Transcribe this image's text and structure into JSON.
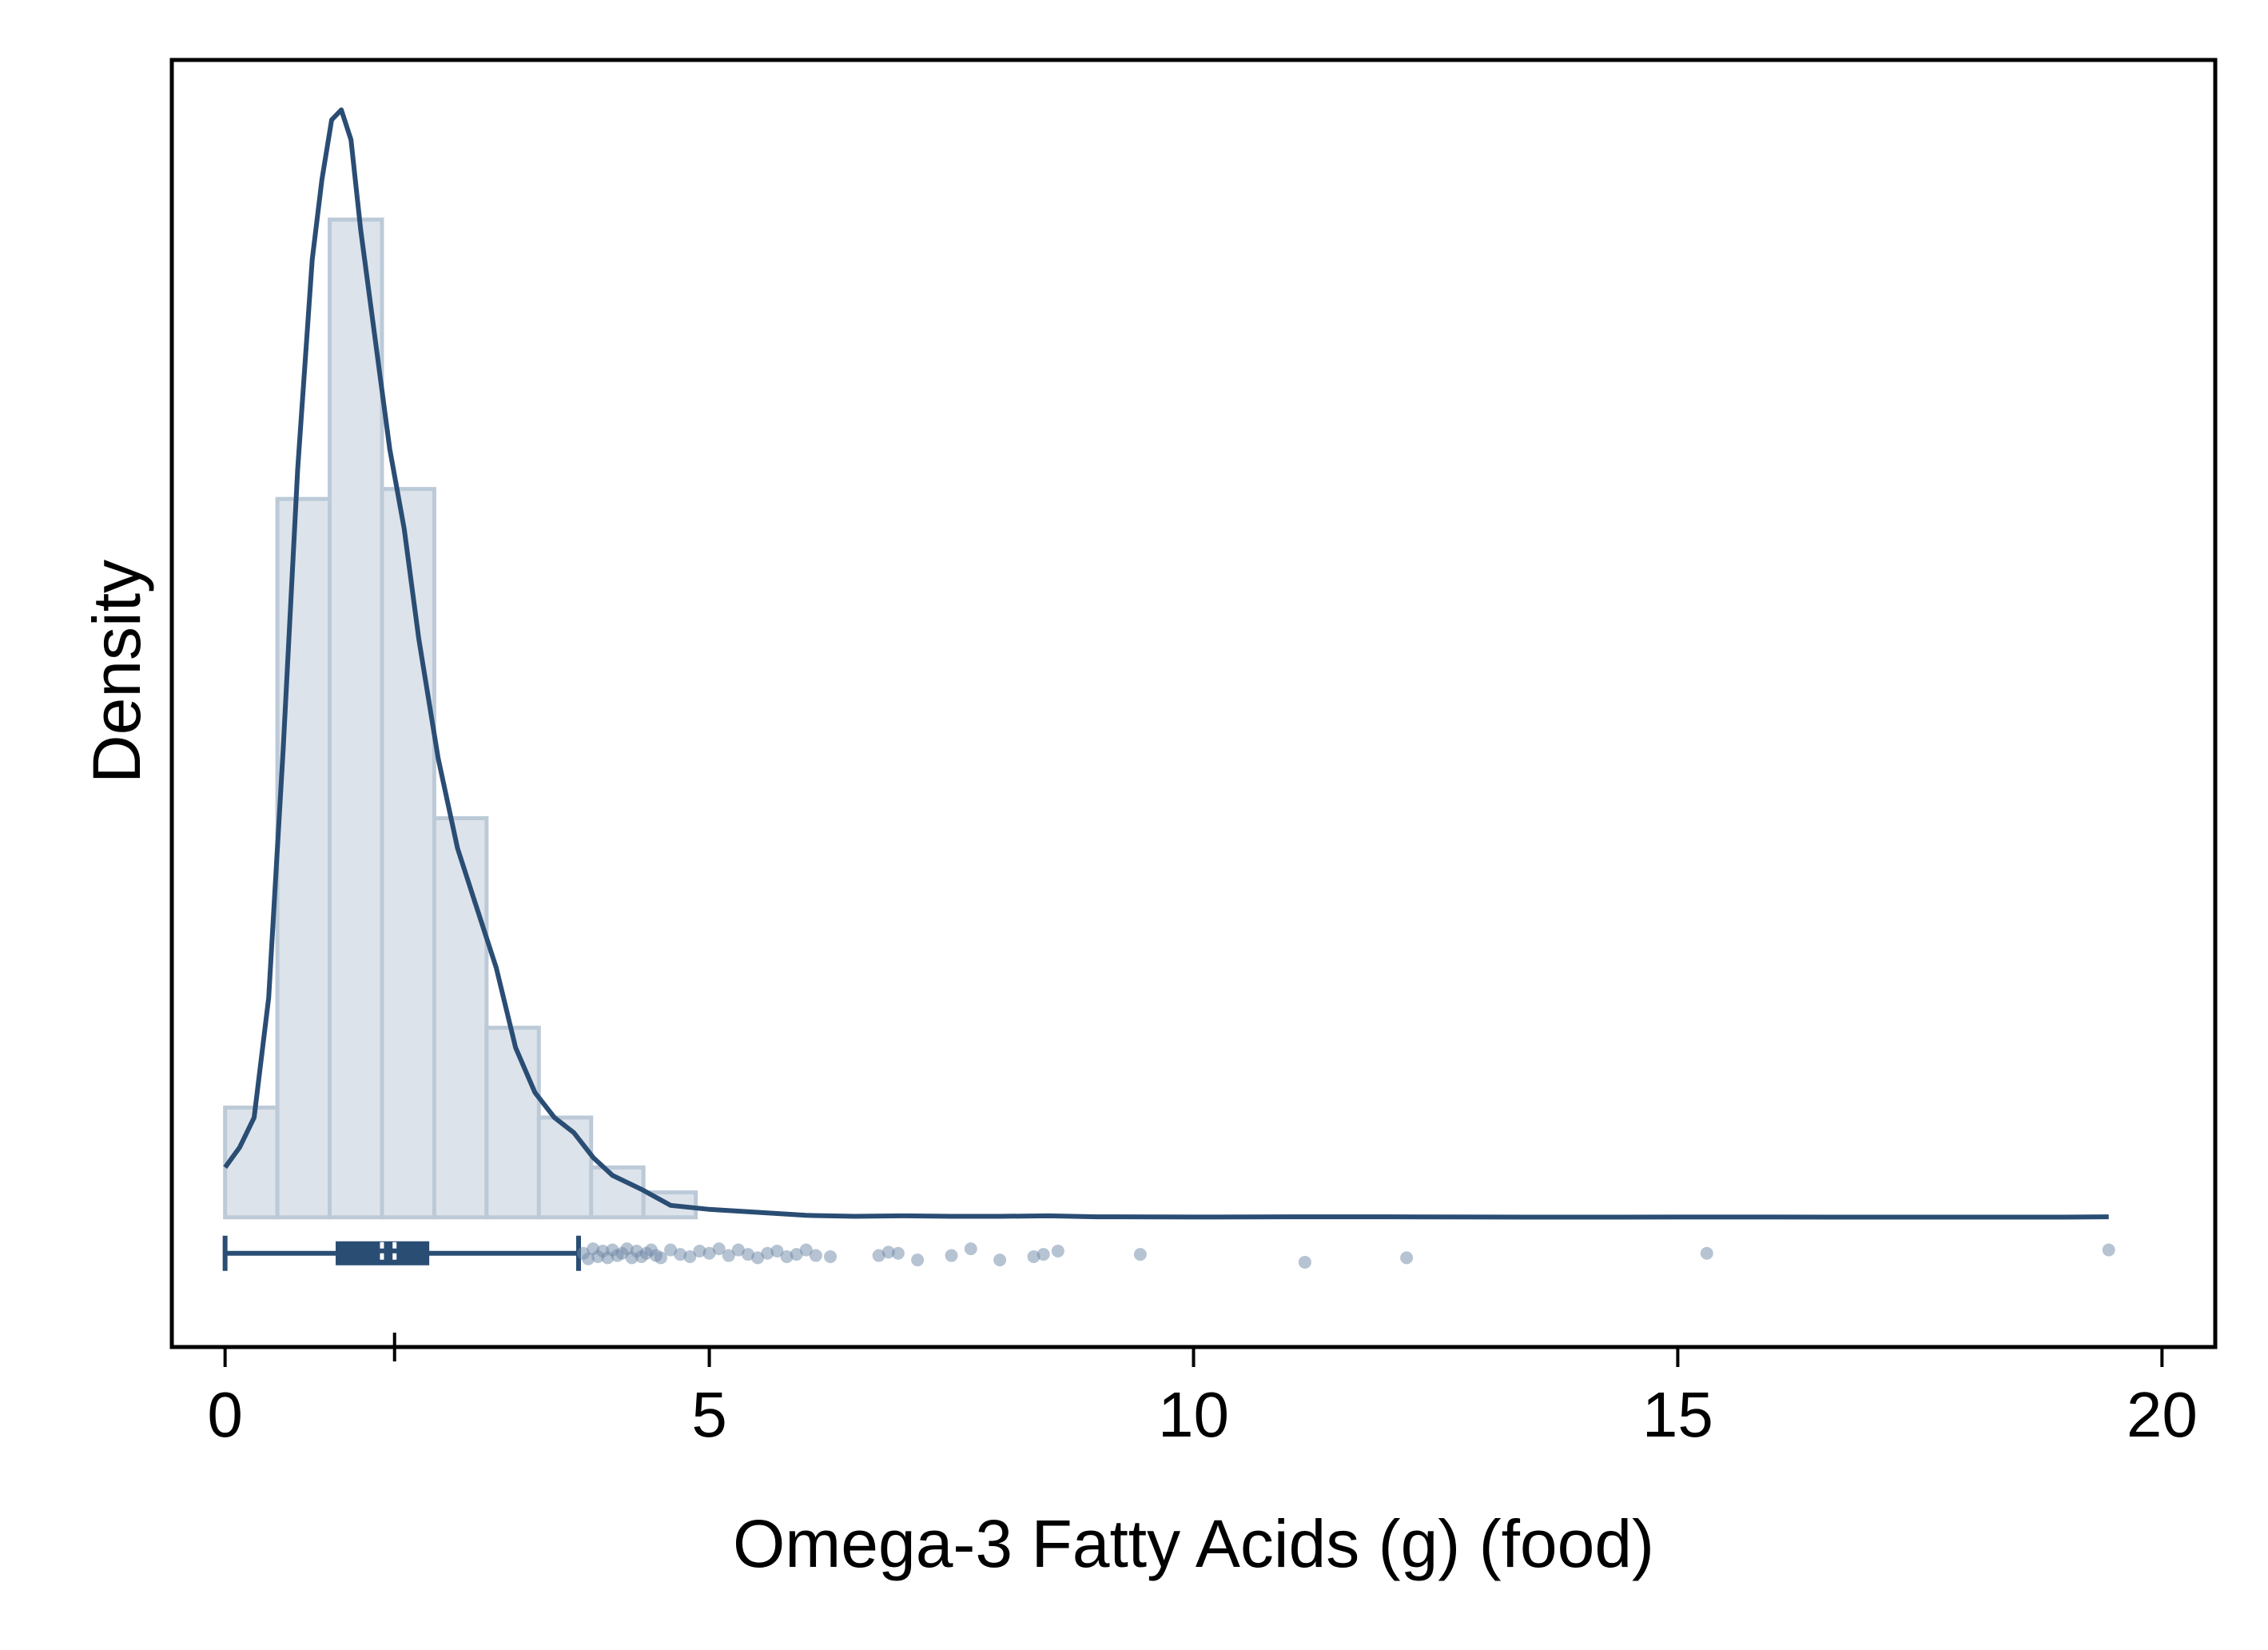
{
  "chart_data": {
    "type": "histogram",
    "xlabel": "Omega-3 Fatty Acids (g) (food)",
    "ylabel": "Density",
    "xlim": [
      -0.55,
      20.55
    ],
    "ylim": [
      -0.13,
      1.16
    ],
    "x_ticks": [
      0,
      5,
      10,
      15,
      20
    ],
    "x_tick_labels": [
      "0",
      "5",
      "10",
      "15",
      "20"
    ],
    "y_ticks_shown": false,
    "grid": false,
    "legend": "none",
    "histogram": {
      "bin_edges": [
        0,
        0.54,
        1.08,
        1.62,
        2.16,
        2.7,
        3.24,
        3.78,
        4.32,
        4.86
      ],
      "heights": [
        0.11,
        0.72,
        1.0,
        0.73,
        0.4,
        0.19,
        0.1,
        0.05,
        0.025
      ]
    },
    "density_curve": {
      "x": [
        0.0,
        0.15,
        0.3,
        0.45,
        0.6,
        0.75,
        0.9,
        1.0,
        1.1,
        1.2,
        1.3,
        1.4,
        1.55,
        1.7,
        1.85,
        2.0,
        2.2,
        2.4,
        2.6,
        2.8,
        3.0,
        3.2,
        3.4,
        3.6,
        3.8,
        4.0,
        4.3,
        4.6,
        5.0,
        5.5,
        6.0,
        6.5,
        7.0,
        7.5,
        8.0,
        8.5,
        9.0,
        10.0,
        11.0,
        12.0,
        13.0,
        14.0,
        15.0,
        16.0,
        17.0,
        18.0,
        19.0,
        19.45
      ],
      "y": [
        0.05,
        0.07,
        0.1,
        0.22,
        0.47,
        0.75,
        0.96,
        1.04,
        1.1,
        1.11,
        1.08,
        0.99,
        0.88,
        0.77,
        0.69,
        0.58,
        0.46,
        0.37,
        0.31,
        0.25,
        0.17,
        0.125,
        0.1,
        0.085,
        0.06,
        0.042,
        0.028,
        0.012,
        0.008,
        0.005,
        0.002,
        0.001,
        0.0015,
        0.001,
        0.001,
        0.0015,
        0.0005,
        0.0003,
        0.0005,
        0.0005,
        0.0003,
        0.0002,
        0.0003,
        0.0003,
        0.0002,
        0.0002,
        0.0002,
        0.0005
      ]
    },
    "boxplot": {
      "whisker_low": 0.0,
      "q1": 1.15,
      "median": 1.62,
      "mean": 1.75,
      "q3": 2.1,
      "whisker_high": 3.65
    },
    "outliers": {
      "x": [
        3.7,
        3.75,
        3.8,
        3.85,
        3.9,
        3.95,
        4.0,
        4.05,
        4.1,
        4.15,
        4.2,
        4.25,
        4.3,
        4.35,
        4.4,
        4.45,
        4.5,
        4.6,
        4.7,
        4.8,
        4.9,
        5.0,
        5.1,
        5.2,
        5.3,
        5.4,
        5.5,
        5.6,
        5.7,
        5.8,
        5.9,
        6.0,
        6.1,
        6.25,
        6.75,
        6.85,
        6.95,
        7.15,
        7.5,
        7.7,
        8.0,
        8.35,
        8.45,
        8.6,
        9.45,
        11.15,
        12.2,
        15.3,
        19.45
      ],
      "y": [
        0.0,
        0.005,
        -0.004,
        0.003,
        -0.002,
        0.004,
        -0.003,
        0.002,
        0.0,
        -0.004,
        0.004,
        -0.002,
        0.003,
        0.0,
        -0.003,
        0.002,
        0.004,
        -0.003,
        0.001,
        0.003,
        -0.002,
        0.0,
        -0.004,
        0.002,
        -0.003,
        0.001,
        0.004,
        0.0,
        -0.002,
        0.003,
        0.001,
        -0.003,
        0.002,
        0.003,
        0.002,
        -0.001,
        0.0,
        0.006,
        0.002,
        -0.004,
        0.006,
        0.003,
        0.001,
        -0.002,
        0.001,
        0.008,
        0.004,
        0.0,
        -0.003
      ]
    },
    "colors": {
      "line": "#2a4d74",
      "bar_fill": "#dde3ea",
      "bar_stroke": "#bccad8",
      "outlier": "#6d88a6",
      "frame": "#000000"
    }
  }
}
